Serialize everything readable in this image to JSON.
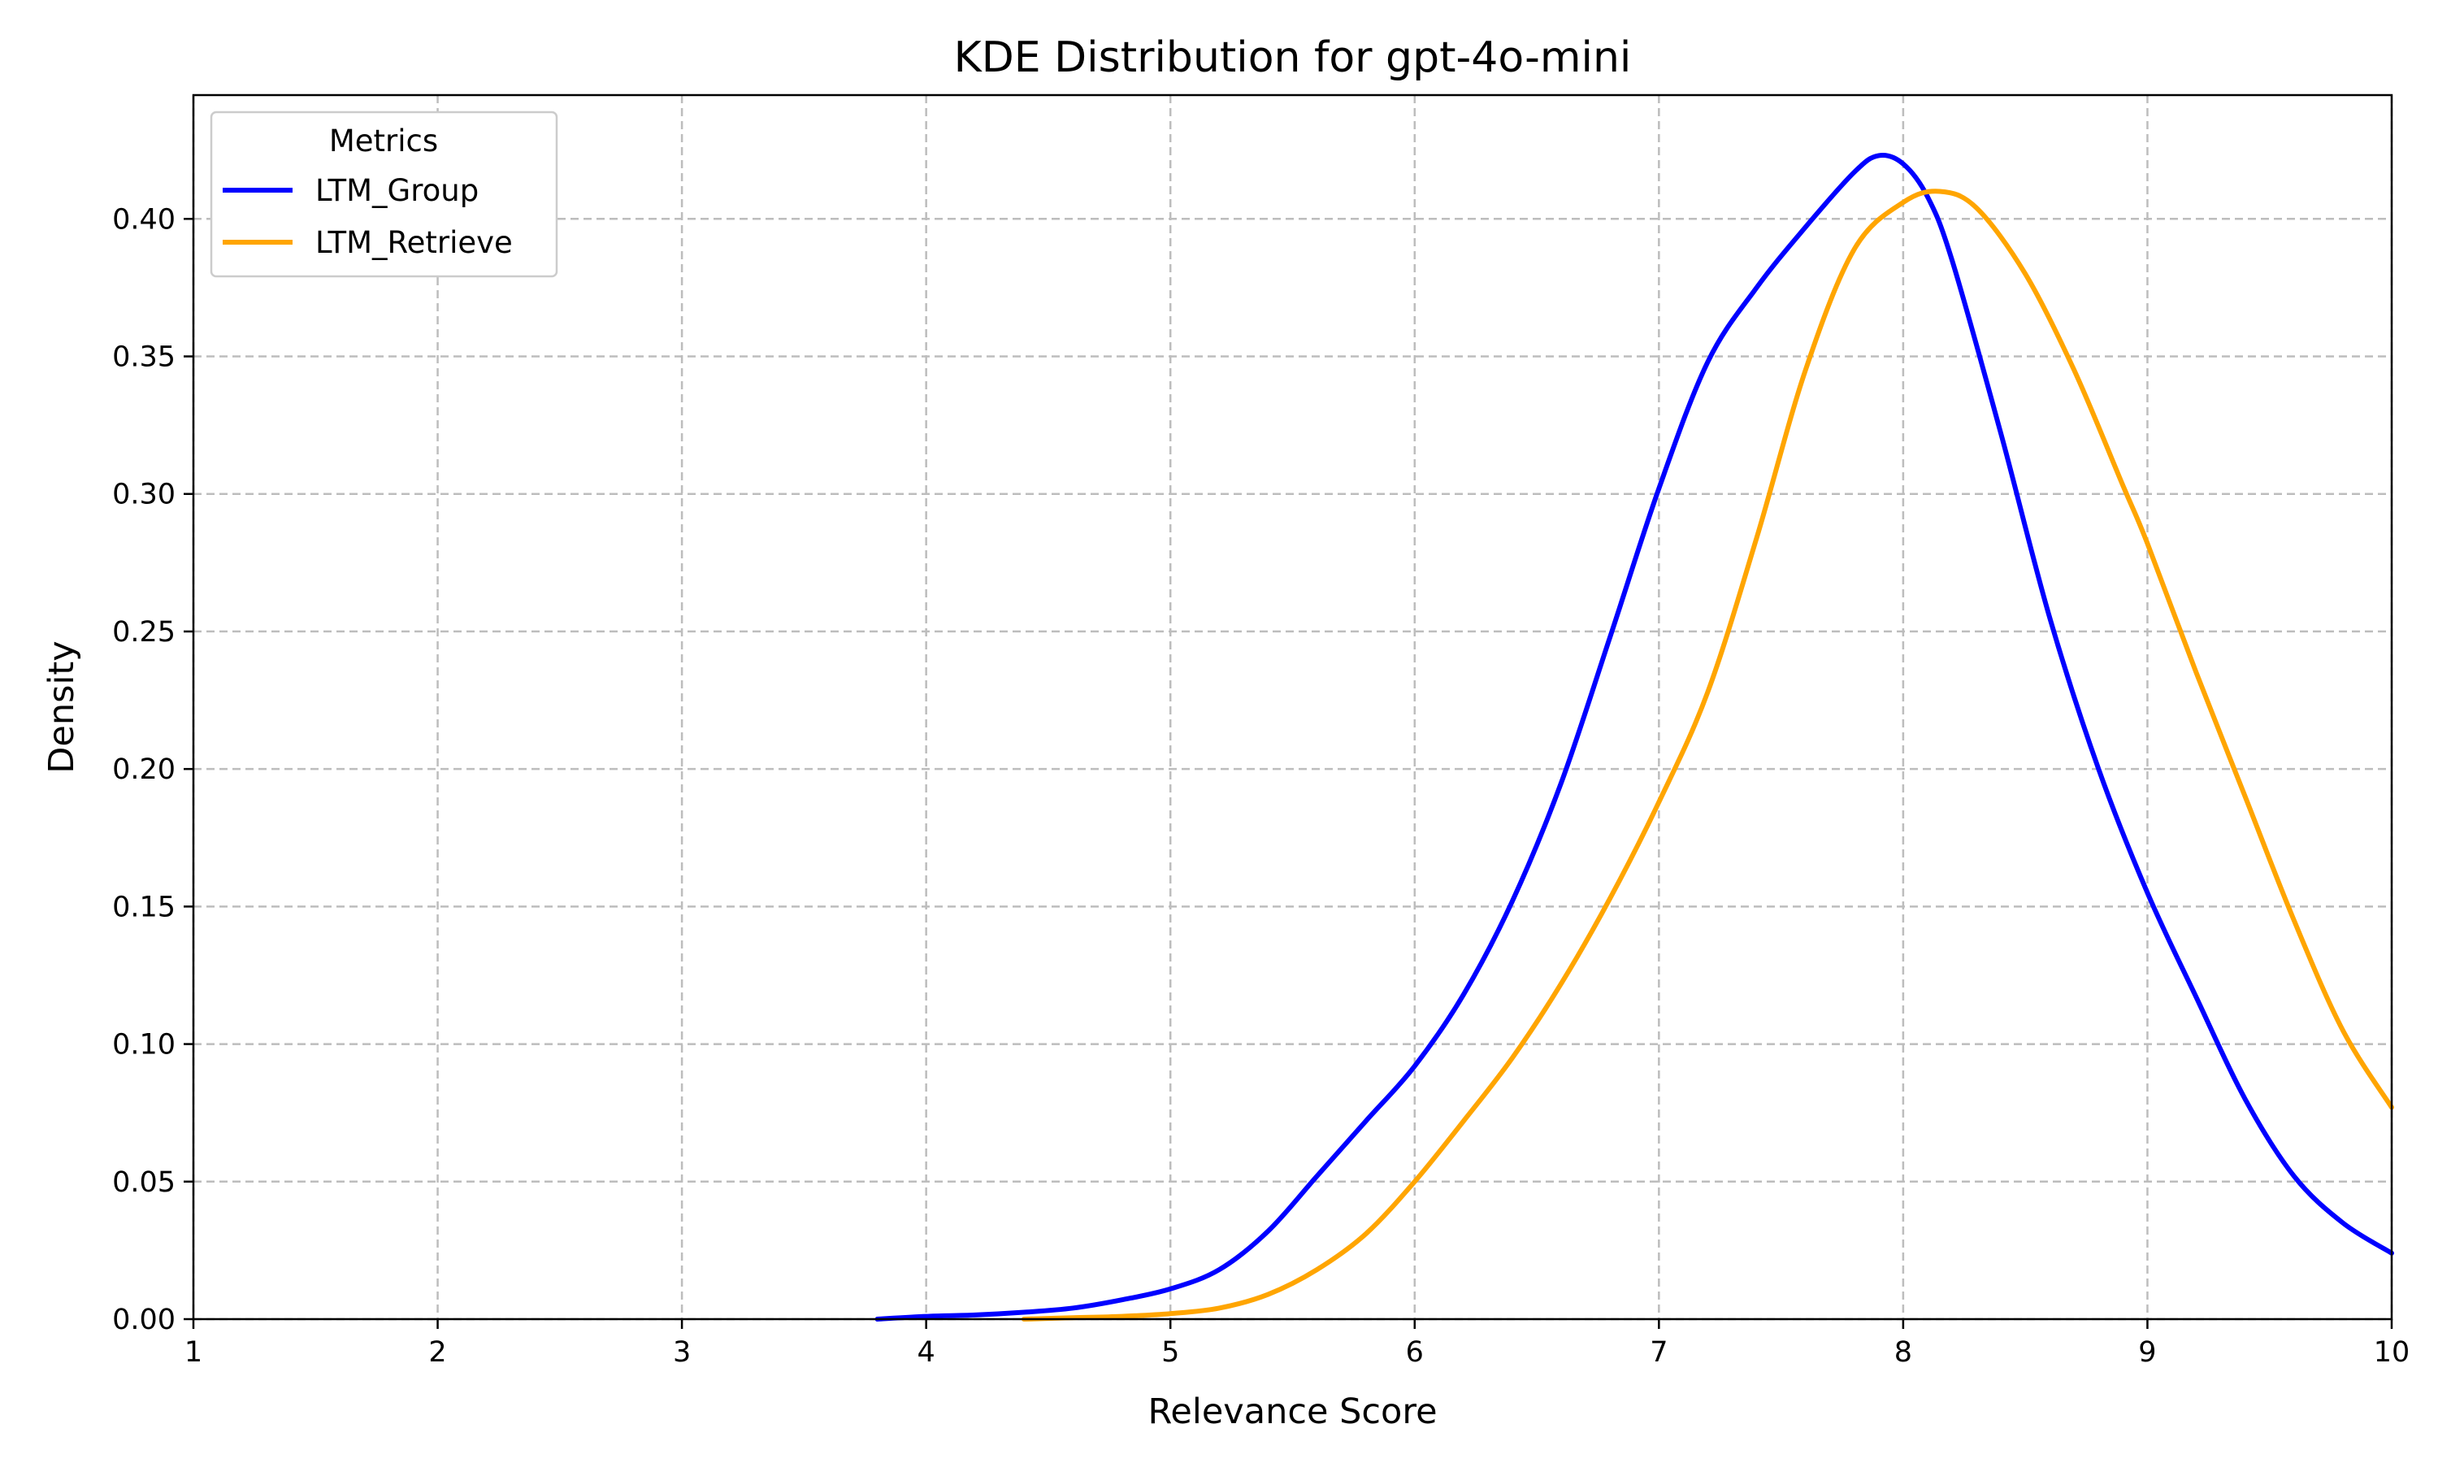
{
  "chart_data": {
    "type": "line",
    "title": "KDE Distribution for gpt-4o-mini",
    "xlabel": "Relevance Score",
    "ylabel": "Density",
    "xlim": [
      1,
      10
    ],
    "ylim": [
      0,
      0.445
    ],
    "xticks": [
      "1",
      "2",
      "3",
      "4",
      "5",
      "6",
      "7",
      "8",
      "9",
      "10"
    ],
    "xtick_values": [
      1,
      2,
      3,
      4,
      5,
      6,
      7,
      8,
      9,
      10
    ],
    "yticks": [
      "0.00",
      "0.05",
      "0.10",
      "0.15",
      "0.20",
      "0.25",
      "0.30",
      "0.35",
      "0.40"
    ],
    "ytick_values": [
      0,
      0.05,
      0.1,
      0.15,
      0.2,
      0.25,
      0.3,
      0.35,
      0.4
    ],
    "grid": true,
    "legend": {
      "title": "Metrics",
      "placement": "top-left"
    },
    "series": [
      {
        "name": "LTM_Group",
        "color": "#0000ff",
        "x": [
          3.8,
          4.0,
          4.2,
          4.4,
          4.6,
          4.8,
          5.0,
          5.2,
          5.4,
          5.6,
          5.8,
          6.0,
          6.2,
          6.4,
          6.6,
          6.8,
          7.0,
          7.2,
          7.4,
          7.6,
          7.8,
          7.9,
          8.0,
          8.1,
          8.2,
          8.4,
          8.6,
          8.8,
          9.0,
          9.2,
          9.4,
          9.6,
          9.8,
          10.0
        ],
        "y": [
          0.0,
          0.001,
          0.0015,
          0.0025,
          0.004,
          0.007,
          0.011,
          0.018,
          0.032,
          0.052,
          0.072,
          0.092,
          0.118,
          0.152,
          0.195,
          0.248,
          0.302,
          0.348,
          0.375,
          0.397,
          0.417,
          0.423,
          0.42,
          0.408,
          0.385,
          0.322,
          0.255,
          0.2,
          0.155,
          0.117,
          0.08,
          0.052,
          0.035,
          0.024
        ]
      },
      {
        "name": "LTM_Retrieve",
        "color": "#ffa500",
        "x": [
          4.4,
          4.6,
          4.8,
          5.0,
          5.2,
          5.4,
          5.6,
          5.8,
          6.0,
          6.2,
          6.4,
          6.6,
          6.8,
          7.0,
          7.2,
          7.4,
          7.6,
          7.8,
          8.0,
          8.15,
          8.3,
          8.5,
          8.7,
          8.9,
          9.0,
          9.2,
          9.4,
          9.6,
          9.8,
          10.0
        ],
        "y": [
          0.0,
          0.0005,
          0.001,
          0.002,
          0.004,
          0.009,
          0.018,
          0.031,
          0.05,
          0.072,
          0.095,
          0.122,
          0.153,
          0.188,
          0.228,
          0.284,
          0.345,
          0.389,
          0.406,
          0.41,
          0.404,
          0.38,
          0.345,
          0.303,
          0.282,
          0.235,
          0.19,
          0.145,
          0.105,
          0.077
        ]
      }
    ]
  }
}
